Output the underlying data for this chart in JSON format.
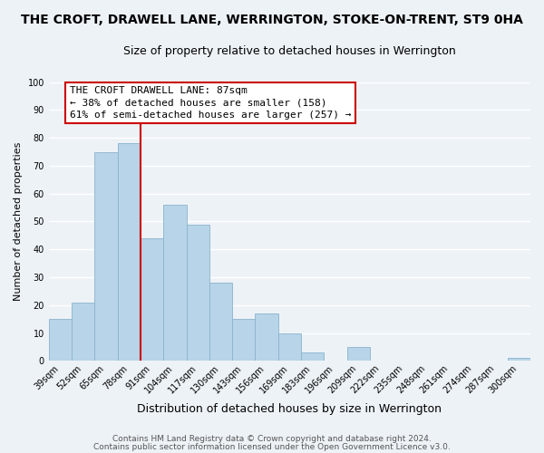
{
  "title": "THE CROFT, DRAWELL LANE, WERRINGTON, STOKE-ON-TRENT, ST9 0HA",
  "subtitle": "Size of property relative to detached houses in Werrington",
  "xlabel": "Distribution of detached houses by size in Werrington",
  "ylabel": "Number of detached properties",
  "bar_labels": [
    "39sqm",
    "52sqm",
    "65sqm",
    "78sqm",
    "91sqm",
    "104sqm",
    "117sqm",
    "130sqm",
    "143sqm",
    "156sqm",
    "169sqm",
    "183sqm",
    "196sqm",
    "209sqm",
    "222sqm",
    "235sqm",
    "248sqm",
    "261sqm",
    "274sqm",
    "287sqm",
    "300sqm"
  ],
  "bar_values": [
    15,
    21,
    75,
    78,
    44,
    56,
    49,
    28,
    15,
    17,
    10,
    3,
    0,
    5,
    0,
    0,
    0,
    0,
    0,
    0,
    1
  ],
  "bar_color": "#b8d4e8",
  "bar_edge_color": "#8ab4cc",
  "vline_color": "#cc0000",
  "annotation_title": "THE CROFT DRAWELL LANE: 87sqm",
  "annotation_line1": "← 38% of detached houses are smaller (158)",
  "annotation_line2": "61% of semi-detached houses are larger (257) →",
  "annotation_box_color": "#ffffff",
  "annotation_box_edge": "#cc0000",
  "ylim": [
    0,
    100
  ],
  "yticks": [
    0,
    10,
    20,
    30,
    40,
    50,
    60,
    70,
    80,
    90,
    100
  ],
  "footer1": "Contains HM Land Registry data © Crown copyright and database right 2024.",
  "footer2": "Contains public sector information licensed under the Open Government Licence v3.0.",
  "background_color": "#edf2f7",
  "grid_color": "#ffffff",
  "title_fontsize": 10,
  "subtitle_fontsize": 9,
  "ylabel_fontsize": 8,
  "xlabel_fontsize": 9,
  "tick_fontsize": 7,
  "footer_fontsize": 6.5,
  "annot_fontsize": 8
}
